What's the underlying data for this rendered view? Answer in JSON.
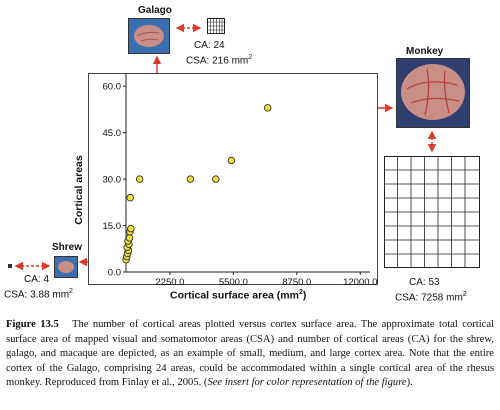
{
  "animals": {
    "galago": {
      "name": "Galago",
      "ca": "CA: 24",
      "csa": "CSA: 216 mm",
      "csa_sup": "2"
    },
    "monkey": {
      "name": "Monkey",
      "ca": "CA: 53",
      "csa": "CSA: 7258 mm",
      "csa_sup": "2"
    },
    "shrew": {
      "name": "Shrew",
      "ca": "CA: 4",
      "csa": "CSA: 3.88 mm",
      "csa_sup": "2"
    }
  },
  "chart_data": {
    "type": "scatter",
    "xlabel": "Cortical surface area (mm",
    "xlabel_sup": "2",
    "xlabel_end": ")",
    "ylabel": "Cortical areas",
    "xlim": [
      0,
      12500
    ],
    "ylim": [
      0,
      62
    ],
    "x_ticks": [
      {
        "value": 2250,
        "label": "2250.0"
      },
      {
        "value": 5500,
        "label": "5500.0"
      },
      {
        "value": 8750,
        "label": "8750.0"
      },
      {
        "value": 12000,
        "label": "12000.0"
      }
    ],
    "y_ticks": [
      {
        "value": 0,
        "label": "0.0"
      },
      {
        "value": 15,
        "label": "15.0"
      },
      {
        "value": 30,
        "label": "30.0"
      },
      {
        "value": 45,
        "label": "45.0"
      },
      {
        "value": 60,
        "label": "60.0"
      }
    ],
    "point_color": "#f2e03a",
    "points": [
      {
        "x": 4,
        "y": 4
      },
      {
        "x": 40,
        "y": 5
      },
      {
        "x": 80,
        "y": 6
      },
      {
        "x": 120,
        "y": 7
      },
      {
        "x": 60,
        "y": 8
      },
      {
        "x": 150,
        "y": 9
      },
      {
        "x": 100,
        "y": 10
      },
      {
        "x": 180,
        "y": 11
      },
      {
        "x": 200,
        "y": 13
      },
      {
        "x": 250,
        "y": 14
      },
      {
        "x": 216,
        "y": 24
      },
      {
        "x": 700,
        "y": 30
      },
      {
        "x": 3300,
        "y": 30
      },
      {
        "x": 4600,
        "y": 30
      },
      {
        "x": 5400,
        "y": 36
      },
      {
        "x": 7258,
        "y": 53
      }
    ]
  },
  "caption": {
    "fig_label": "Figure 13.5",
    "text": "The number of cortical areas plotted versus cortex surface area. The approximate total cortical surface area of mapped visual and somatomotor areas (CSA) and number of cortical areas (CA) for the shrew, galago, and macaque are depicted, as an example of small, medium, and large cortex area. Note that the entire cortex of the Galago, comprising 24 areas, could be accommodated within a single cortical area of the rhesus monkey. Reproduced from Finlay et al., 2005. (",
    "italic": "See insert for color representation of the figure",
    "end": ")."
  },
  "colors": {
    "arrow": "#d93a2b",
    "brain": "#c98f86",
    "bg_blue": "#3c6fb0"
  }
}
